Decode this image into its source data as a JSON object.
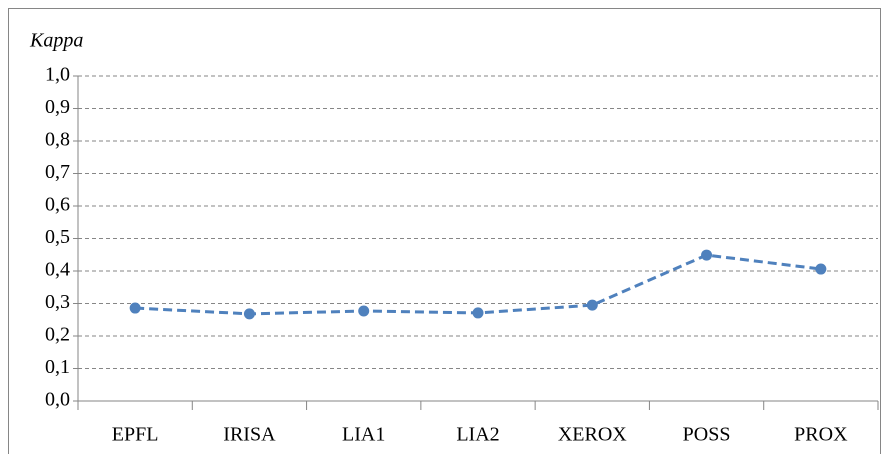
{
  "chart_data": {
    "type": "line",
    "ylabel": "Kappa",
    "categories": [
      "EPFL",
      "IRISA",
      "LIA1",
      "LIA2",
      "XEROX",
      "POSS",
      "PROX"
    ],
    "series": [
      {
        "name": "Kappa",
        "color": "#4f81bd",
        "values": [
          0.286,
          0.268,
          0.277,
          0.271,
          0.295,
          0.449,
          0.406
        ]
      }
    ],
    "ylim": [
      0,
      1
    ],
    "yticks": [
      {
        "value": 0,
        "label": "0,0"
      },
      {
        "value": 0.1,
        "label": "0,1"
      },
      {
        "value": 0.2,
        "label": "0,2"
      },
      {
        "value": 0.3,
        "label": "0,3"
      },
      {
        "value": 0.4,
        "label": "0,4"
      },
      {
        "value": 0.5,
        "label": "0,5"
      },
      {
        "value": 0.6,
        "label": "0,6"
      },
      {
        "value": 0.7,
        "label": "0,7"
      },
      {
        "value": 0.8,
        "label": "0,8"
      },
      {
        "value": 0.9,
        "label": "0,9"
      },
      {
        "value": 1,
        "label": "1,0"
      }
    ],
    "grid": true,
    "line_style": "dashed"
  }
}
